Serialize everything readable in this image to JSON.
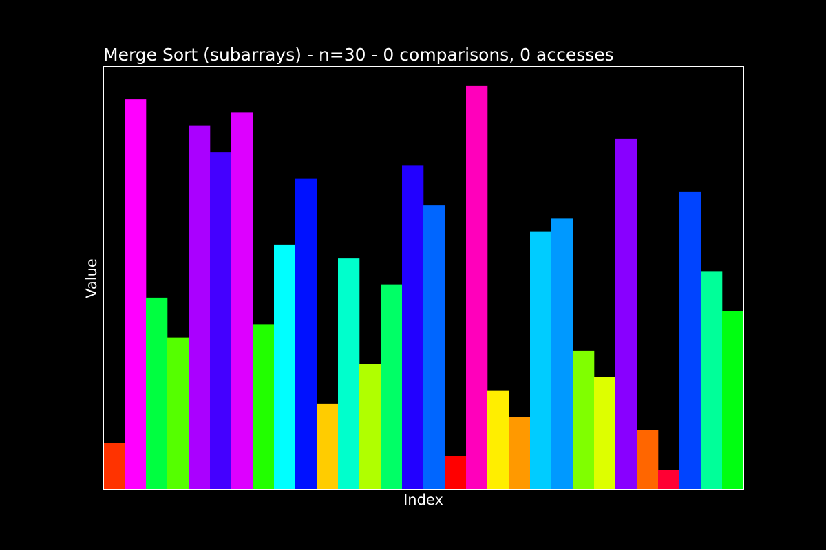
{
  "chart_data": {
    "type": "bar",
    "title": "Merge Sort (subarrays) - n=30 - 0 comparisons, 0 accesses",
    "xlabel": "Index",
    "ylabel": "Value",
    "x_ticks_shown": false,
    "y_ticks_shown": false,
    "grid": false,
    "legend": "none",
    "background_color": "#000000",
    "text_color": "#ffffff",
    "frame_color": "#ffffff",
    "ylim": [
      0,
      32
    ],
    "categories": [
      0,
      1,
      2,
      3,
      4,
      5,
      6,
      7,
      8,
      9,
      10,
      11,
      12,
      13,
      14,
      15,
      16,
      17,
      18,
      19,
      20,
      21,
      22,
      23,
      24,
      25,
      26,
      27,
      28,
      29
    ],
    "values": [
      3.5,
      29.5,
      14.5,
      11.5,
      27.5,
      25.5,
      28.5,
      12.5,
      18.5,
      23.5,
      6.5,
      17.5,
      9.5,
      15.5,
      24.5,
      21.5,
      2.5,
      30.5,
      7.5,
      5.5,
      19.5,
      20.5,
      10.5,
      8.5,
      26.5,
      4.5,
      1.5,
      22.5,
      16.5,
      13.5
    ],
    "colors": [
      "#ff3300",
      "#ff00ff",
      "#00ff40",
      "#55ff00",
      "#aa00ff",
      "#4400ff",
      "#dd00ff",
      "#22ff00",
      "#00ffff",
      "#0011ff",
      "#ffcc00",
      "#00ffcc",
      "#b0ff00",
      "#00ff66",
      "#2200ff",
      "#0066ff",
      "#ff0000",
      "#ff00bb",
      "#ffee00",
      "#ff9900",
      "#00ccff",
      "#0099ff",
      "#80ff00",
      "#ddff00",
      "#8800ff",
      "#ff6600",
      "#ff0033",
      "#0044ff",
      "#00ff99",
      "#00ff11"
    ]
  }
}
